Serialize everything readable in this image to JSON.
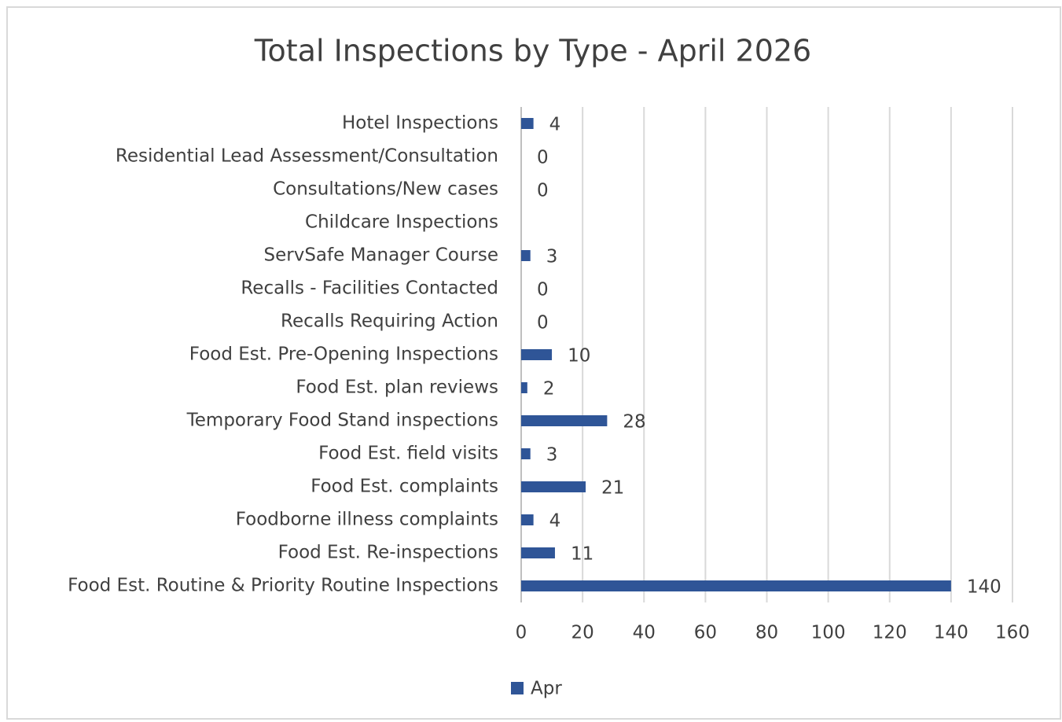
{
  "chart_data": {
    "type": "bar",
    "orientation": "horizontal",
    "title": "Total Inspections by Type - April 2026",
    "categories": [
      "Hotel Inspections",
      "Residential Lead Assessment/Consultation",
      "Consultations/New cases",
      "Childcare Inspections",
      "ServSafe Manager Course",
      "Recalls - Facilities Contacted",
      "Recalls Requiring Action",
      "Food Est. Pre-Opening Inspections",
      "Food Est. plan reviews",
      "Temporary Food Stand inspections",
      "Food Est. field visits",
      "Food Est. complaints",
      "Foodborne illness complaints",
      "Food Est. Re-inspections",
      "Food Est. Routine & Priority Routine Inspections"
    ],
    "series": [
      {
        "name": "Apr",
        "color": "#2f5597",
        "values": [
          4,
          0,
          0,
          null,
          3,
          0,
          0,
          10,
          2,
          28,
          3,
          21,
          4,
          11,
          140
        ]
      }
    ],
    "xlim": [
      0,
      160
    ],
    "xticks": [
      0,
      20,
      40,
      60,
      80,
      100,
      120,
      140,
      160
    ],
    "grid": true,
    "legend": "bottom"
  }
}
